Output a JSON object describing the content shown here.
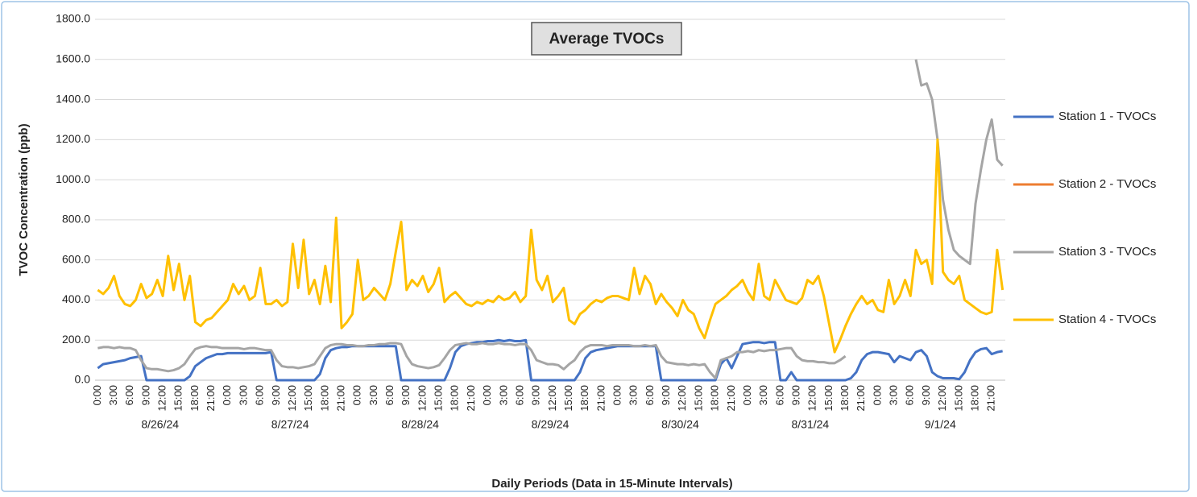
{
  "chart_data": {
    "type": "line",
    "title": "Average TVOCs",
    "y_label": "TVOC Concentration (ppb)",
    "x_label": "Daily Periods (Data in 15-Minute Intervals)",
    "categories": [
      "0:00",
      null,
      null,
      "3:00",
      null,
      null,
      "6:00",
      null,
      null,
      "9:00",
      null,
      null,
      "12:00",
      null,
      null,
      "15:00",
      null,
      null,
      "18:00",
      null,
      null,
      "21:00",
      null,
      null,
      "0:00",
      null,
      null,
      "3:00",
      null,
      null,
      "6:00",
      null,
      null,
      "9:00",
      null,
      null,
      "12:00",
      null,
      null,
      "15:00",
      null,
      null,
      "18:00",
      null,
      null,
      "21:00",
      null,
      null,
      "0:00",
      null,
      null,
      "3:00",
      null,
      null,
      "6:00",
      null,
      null,
      "9:00",
      null,
      null,
      "12:00",
      null,
      null,
      "15:00",
      null,
      null,
      "18:00",
      null,
      null,
      "21:00",
      null,
      null,
      "0:00",
      null,
      null,
      "3:00",
      null,
      null,
      "6:00",
      null,
      null,
      "9:00",
      null,
      null,
      "12:00",
      null,
      null,
      "15:00",
      null,
      null,
      "18:00",
      null,
      null,
      "21:00",
      null,
      null,
      "0:00",
      null,
      null,
      "3:00",
      null,
      null,
      "6:00",
      null,
      null,
      "9:00",
      null,
      null,
      "12:00",
      null,
      null,
      "15:00",
      null,
      null,
      "18:00",
      null,
      null,
      "21:00",
      null,
      null,
      "0:00",
      null,
      null,
      "3:00",
      null,
      null,
      "6:00",
      null,
      null,
      "9:00",
      null,
      null,
      "12:00",
      null,
      null,
      "15:00",
      null,
      null,
      "18:00",
      null,
      null,
      "21:00",
      null,
      null,
      "0:00",
      null,
      null,
      "3:00",
      null,
      null,
      "6:00",
      null,
      null,
      "9:00",
      null,
      null,
      "12:00",
      null,
      null,
      "15:00",
      null,
      null,
      "18:00",
      null,
      null,
      "21:00",
      null,
      null
    ],
    "day_groups": [
      "8/26/24",
      "8/27/24",
      "8/28/24",
      "8/29/24",
      "8/30/24",
      "8/31/24",
      "9/1/24"
    ],
    "ylim": [
      0,
      1800
    ],
    "yticks": [
      {
        "value": 0,
        "label": "0.0"
      },
      {
        "value": 200,
        "label": "200.0"
      },
      {
        "value": 400,
        "label": "400.0"
      },
      {
        "value": 600,
        "label": "600.0"
      },
      {
        "value": 800,
        "label": "800.0"
      },
      {
        "value": 1000,
        "label": "1000.0"
      },
      {
        "value": 1200,
        "label": "1200.0"
      },
      {
        "value": 1400,
        "label": "1400.0"
      },
      {
        "value": 1600,
        "label": "1600.0"
      },
      {
        "value": 1800,
        "label": "1800.0"
      }
    ],
    "grid": true,
    "legend": "right",
    "series": [
      {
        "name": "Station 1 - TVOCs",
        "color": "#4472c4",
        "values": [
          60,
          80,
          85,
          90,
          95,
          100,
          110,
          115,
          120,
          0,
          0,
          0,
          0,
          0,
          0,
          0,
          0,
          20,
          70,
          90,
          110,
          120,
          130,
          130,
          135,
          135,
          135,
          135,
          135,
          135,
          135,
          135,
          140,
          0,
          0,
          0,
          0,
          0,
          0,
          0,
          0,
          30,
          110,
          150,
          160,
          165,
          165,
          170,
          170,
          170,
          170,
          170,
          170,
          170,
          170,
          170,
          0,
          0,
          0,
          0,
          0,
          0,
          0,
          0,
          0,
          60,
          140,
          170,
          180,
          185,
          190,
          190,
          195,
          195,
          200,
          195,
          200,
          195,
          195,
          200,
          0,
          0,
          0,
          0,
          0,
          0,
          0,
          0,
          0,
          40,
          110,
          140,
          150,
          155,
          160,
          165,
          170,
          170,
          170,
          170,
          170,
          170,
          170,
          170,
          0,
          0,
          0,
          0,
          0,
          0,
          0,
          0,
          0,
          0,
          0,
          80,
          110,
          60,
          120,
          180,
          185,
          190,
          190,
          185,
          190,
          190,
          0,
          0,
          40,
          0,
          0,
          0,
          0,
          0,
          0,
          0,
          0,
          0,
          0,
          10,
          40,
          100,
          130,
          140,
          140,
          135,
          130,
          90,
          120,
          110,
          100,
          140,
          150,
          120,
          40,
          20,
          10,
          10,
          10,
          5,
          40,
          100,
          140,
          155,
          160,
          130,
          140,
          145
        ]
      },
      {
        "name": "Station 2 - TVOCs",
        "color": "#ed7d31",
        "values": [
          null,
          null,
          null,
          null,
          null,
          null,
          null,
          null,
          null,
          null,
          null,
          null,
          null,
          null,
          null,
          null,
          null,
          null,
          null,
          null,
          null,
          null,
          null,
          null,
          null,
          null,
          null,
          null,
          null,
          null,
          null,
          null,
          null,
          null,
          null,
          null,
          null,
          null,
          null,
          null,
          null,
          null,
          null,
          null,
          null,
          null,
          null,
          null,
          null,
          null,
          null,
          null,
          null,
          null,
          null,
          null,
          null,
          null,
          null,
          null,
          null,
          null,
          null,
          null,
          null,
          null,
          null,
          null,
          null,
          null,
          null,
          null,
          null,
          null,
          null,
          null,
          null,
          null,
          null,
          null,
          null,
          null,
          null,
          null,
          null,
          null,
          null,
          null,
          null,
          null,
          null,
          null,
          null,
          null,
          null,
          null,
          null,
          null,
          null,
          null,
          null,
          null,
          null,
          null,
          null,
          null,
          null,
          null,
          null,
          null,
          null,
          null,
          null,
          null,
          null,
          null,
          null,
          null,
          null,
          null,
          null,
          null,
          null,
          null,
          null,
          null,
          null,
          null,
          null,
          null,
          null,
          null,
          null,
          null,
          null,
          null,
          null,
          null,
          null,
          null,
          null,
          null,
          null,
          null,
          null,
          null,
          null,
          null,
          null,
          null,
          null,
          null,
          null,
          null,
          null,
          null,
          null,
          null,
          null,
          null,
          null,
          null,
          null,
          null,
          null,
          null,
          null,
          null
        ]
      },
      {
        "name": "Station 3 - TVOCs",
        "color": "#a5a5a5",
        "values": [
          160,
          165,
          165,
          160,
          165,
          160,
          160,
          150,
          100,
          60,
          55,
          55,
          50,
          45,
          50,
          60,
          80,
          120,
          155,
          165,
          170,
          165,
          165,
          160,
          160,
          160,
          160,
          155,
          160,
          160,
          155,
          150,
          150,
          100,
          70,
          65,
          65,
          60,
          65,
          70,
          80,
          120,
          160,
          175,
          180,
          180,
          175,
          175,
          170,
          170,
          175,
          175,
          180,
          180,
          185,
          185,
          180,
          120,
          80,
          70,
          65,
          60,
          65,
          75,
          110,
          150,
          175,
          180,
          185,
          180,
          180,
          185,
          180,
          180,
          185,
          180,
          180,
          175,
          180,
          180,
          150,
          100,
          90,
          80,
          80,
          75,
          55,
          80,
          100,
          140,
          165,
          175,
          175,
          175,
          170,
          175,
          175,
          175,
          175,
          170,
          170,
          175,
          170,
          175,
          120,
          90,
          85,
          80,
          80,
          75,
          80,
          75,
          80,
          40,
          10,
          100,
          110,
          120,
          140,
          140,
          145,
          140,
          150,
          145,
          150,
          150,
          155,
          160,
          160,
          120,
          100,
          95,
          95,
          90,
          90,
          85,
          85,
          100,
          120,
          null,
          null,
          null,
          null,
          null,
          null,
          null,
          null,
          null,
          null,
          null,
          null,
          1600,
          1470,
          1480,
          1400,
          1200,
          900,
          750,
          650,
          620,
          600,
          580,
          880,
          1050,
          1200,
          1300,
          1100,
          1070
        ]
      },
      {
        "name": "Station 4 - TVOCs",
        "color": "#ffc000",
        "values": [
          450,
          430,
          460,
          520,
          420,
          380,
          370,
          400,
          480,
          410,
          430,
          500,
          420,
          620,
          450,
          580,
          400,
          520,
          290,
          270,
          300,
          310,
          340,
          370,
          400,
          480,
          430,
          470,
          400,
          420,
          560,
          380,
          380,
          400,
          370,
          390,
          680,
          460,
          700,
          430,
          500,
          380,
          570,
          390,
          810,
          260,
          290,
          330,
          600,
          400,
          420,
          460,
          430,
          400,
          480,
          640,
          790,
          450,
          500,
          470,
          520,
          440,
          480,
          560,
          390,
          420,
          440,
          410,
          380,
          370,
          390,
          380,
          400,
          390,
          420,
          400,
          410,
          440,
          390,
          420,
          750,
          500,
          450,
          520,
          390,
          420,
          460,
          300,
          280,
          330,
          350,
          380,
          400,
          390,
          410,
          420,
          420,
          410,
          400,
          560,
          430,
          520,
          480,
          380,
          430,
          390,
          360,
          320,
          400,
          350,
          330,
          260,
          210,
          300,
          380,
          400,
          420,
          450,
          470,
          500,
          440,
          400,
          580,
          420,
          400,
          500,
          450,
          400,
          390,
          380,
          410,
          500,
          480,
          520,
          420,
          280,
          140,
          200,
          270,
          330,
          380,
          420,
          380,
          400,
          350,
          340,
          500,
          380,
          420,
          500,
          420,
          650,
          580,
          600,
          480,
          1200,
          540,
          500,
          480,
          520,
          400,
          380,
          360,
          340,
          330,
          340,
          650,
          450
        ]
      }
    ]
  }
}
